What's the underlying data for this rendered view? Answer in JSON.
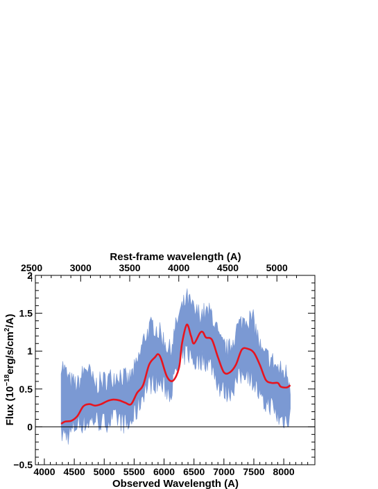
{
  "chart_data": {
    "type": "line",
    "title": "",
    "xlabel": "Observed Wavelength (A)",
    "top_xlabel": "Rest-frame wavelength (A)",
    "ylabel": "Flux (10^-18 erg/s/cm^2/A)",
    "ylabel_parts": {
      "pre": "Flux (10",
      "exp1": "−18",
      "mid": "erg/s/cm",
      "exp2": "2",
      "post": "/A)"
    },
    "xlim": [
      3850,
      8520
    ],
    "ylim": [
      -0.5,
      2.0
    ],
    "x_ticks": [
      4000,
      4500,
      5000,
      5500,
      6000,
      6500,
      7000,
      7500,
      8000
    ],
    "y_ticks": [
      -0.5,
      0,
      0.5,
      1,
      1.5,
      2
    ],
    "y_tick_labels": [
      "−0.5",
      "0",
      "0.5",
      "1",
      "1.5",
      "2"
    ],
    "top_ticks_rest": [
      2500,
      3000,
      3500,
      4000,
      4500,
      5000
    ],
    "rest_scale": {
      "observed": [
        4000,
        8000
      ],
      "rest": [
        2630,
        5070
      ]
    },
    "zero_line": 0,
    "colors": {
      "spectrum": "#7b99d3",
      "model": "#e8141e"
    },
    "series": [
      {
        "kind": "band",
        "x": [
          4280,
          4420,
          4560,
          4700,
          4840,
          4980,
          5120,
          5260,
          5400,
          5540,
          5680,
          5820,
          5960,
          6100,
          6240,
          6380,
          6520,
          6660,
          6800,
          6940,
          7080,
          7220,
          7360,
          7500,
          7640,
          7780,
          7920,
          8060,
          8110
        ],
        "lower": [
          -0.1,
          -0.1,
          0.05,
          0.05,
          0.1,
          0.05,
          0.1,
          0.1,
          0.0,
          0.2,
          0.5,
          0.6,
          0.55,
          0.45,
          0.8,
          1.0,
          0.85,
          0.9,
          0.8,
          0.5,
          0.45,
          0.6,
          0.75,
          0.6,
          0.3,
          0.3,
          0.1,
          0.1,
          0.2
        ],
        "upper": [
          0.85,
          0.6,
          0.55,
          0.8,
          0.55,
          0.6,
          0.65,
          0.7,
          0.6,
          0.8,
          1.2,
          1.35,
          1.2,
          1.0,
          1.45,
          1.7,
          1.5,
          1.5,
          1.5,
          1.1,
          1.0,
          1.3,
          1.45,
          1.4,
          0.95,
          0.9,
          0.75,
          0.7,
          0.55
        ],
        "noise_amplitude": 0.15
      },
      {
        "kind": "line",
        "x": [
          4280,
          4350,
          4450,
          4550,
          4650,
          4750,
          4850,
          4950,
          5050,
          5150,
          5250,
          5350,
          5450,
          5550,
          5650,
          5750,
          5850,
          5900,
          5950,
          6050,
          6150,
          6250,
          6300,
          6380,
          6450,
          6500,
          6600,
          6650,
          6700,
          6800,
          6900,
          7000,
          7100,
          7200,
          7300,
          7400,
          7500,
          7600,
          7700,
          7800,
          7900,
          7950,
          8050,
          8110
        ],
        "y": [
          0.04,
          0.07,
          0.08,
          0.14,
          0.27,
          0.3,
          0.28,
          0.3,
          0.34,
          0.36,
          0.35,
          0.32,
          0.3,
          0.45,
          0.55,
          0.82,
          0.92,
          0.96,
          0.9,
          0.66,
          0.61,
          0.78,
          1.1,
          1.35,
          1.2,
          1.1,
          1.24,
          1.25,
          1.18,
          1.15,
          0.92,
          0.72,
          0.72,
          0.82,
          1.02,
          1.03,
          0.98,
          0.82,
          0.62,
          0.58,
          0.58,
          0.53,
          0.52,
          0.55
        ]
      }
    ]
  }
}
